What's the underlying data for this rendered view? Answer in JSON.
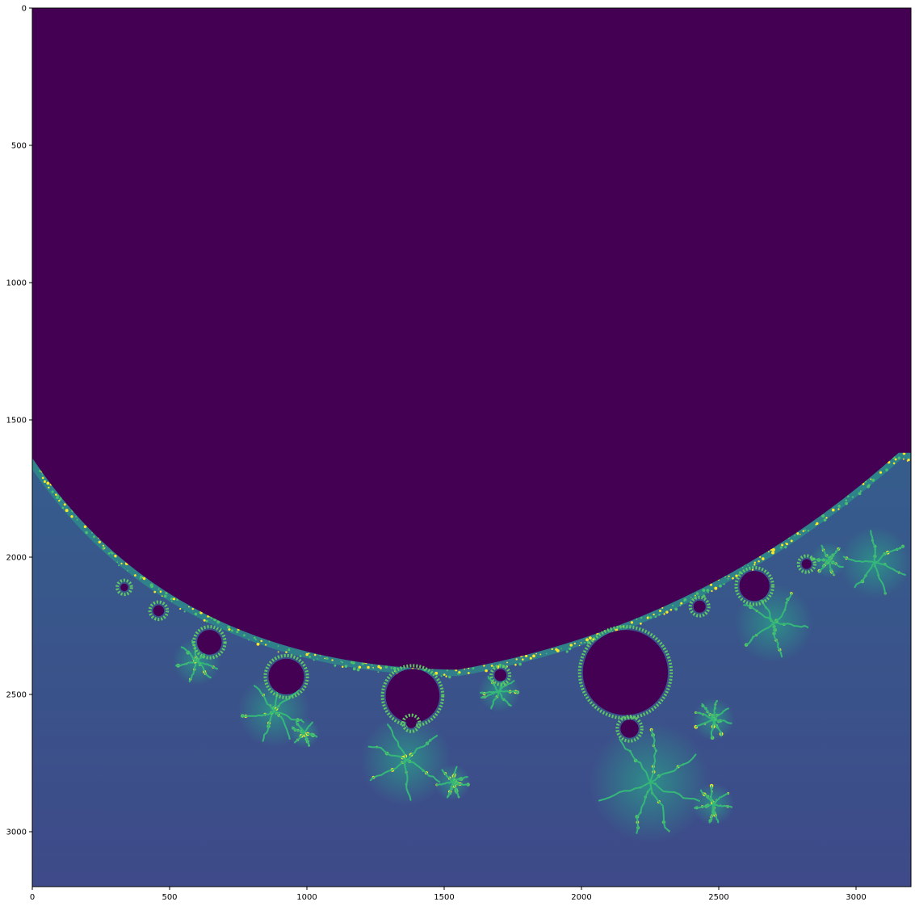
{
  "chart_data": {
    "type": "heatmap",
    "title": "",
    "xlabel": "",
    "ylabel": "",
    "xlim": [
      0,
      3200
    ],
    "ylim": [
      3200,
      0
    ],
    "x_ticks": [
      0,
      500,
      1000,
      1500,
      2000,
      2500,
      3000
    ],
    "y_ticks": [
      0,
      500,
      1000,
      1500,
      2000,
      2500,
      3000
    ],
    "x_tick_labels": [
      "0",
      "500",
      "1000",
      "1500",
      "2000",
      "2500",
      "3000"
    ],
    "y_tick_labels": [
      "0",
      "500",
      "1000",
      "1500",
      "2000",
      "2500",
      "3000"
    ],
    "colormap": "viridis",
    "grid": false,
    "colors": {
      "interior": "#440154",
      "background_far": "#3e4a89",
      "teal": "#31688e",
      "green": "#35b779",
      "yellow": "#fde725"
    },
    "main_boundary": {
      "left_y": 1630,
      "bottom": [
        1550,
        2410
      ],
      "right": [
        3155,
        1620
      ]
    },
    "bulbs": [
      {
        "cx": 2160,
        "cy": 2420,
        "r": 155
      },
      {
        "cx": 1385,
        "cy": 2505,
        "r": 98
      },
      {
        "cx": 925,
        "cy": 2435,
        "r": 65
      },
      {
        "cx": 645,
        "cy": 2310,
        "r": 45
      },
      {
        "cx": 2630,
        "cy": 2105,
        "r": 55
      },
      {
        "cx": 2175,
        "cy": 2625,
        "r": 33
      },
      {
        "cx": 1705,
        "cy": 2430,
        "r": 22
      },
      {
        "cx": 2430,
        "cy": 2180,
        "r": 22
      },
      {
        "cx": 460,
        "cy": 2195,
        "r": 20
      },
      {
        "cx": 335,
        "cy": 2110,
        "r": 14
      },
      {
        "cx": 2820,
        "cy": 2025,
        "r": 18
      },
      {
        "cx": 1380,
        "cy": 2605,
        "r": 18
      }
    ],
    "filaments": [
      {
        "x": 1360,
        "y": 2740,
        "r": 150
      },
      {
        "x": 2250,
        "y": 2820,
        "r": 200
      },
      {
        "x": 880,
        "y": 2560,
        "r": 120
      },
      {
        "x": 2700,
        "y": 2240,
        "r": 130
      },
      {
        "x": 600,
        "y": 2380,
        "r": 80
      },
      {
        "x": 1700,
        "y": 2490,
        "r": 70
      },
      {
        "x": 3070,
        "y": 2020,
        "r": 120
      },
      {
        "x": 2480,
        "y": 2900,
        "r": 70
      },
      {
        "x": 1530,
        "y": 2820,
        "r": 60
      },
      {
        "x": 990,
        "y": 2640,
        "r": 50
      },
      {
        "x": 2480,
        "y": 2590,
        "r": 70
      },
      {
        "x": 2900,
        "y": 2010,
        "r": 60
      }
    ]
  }
}
